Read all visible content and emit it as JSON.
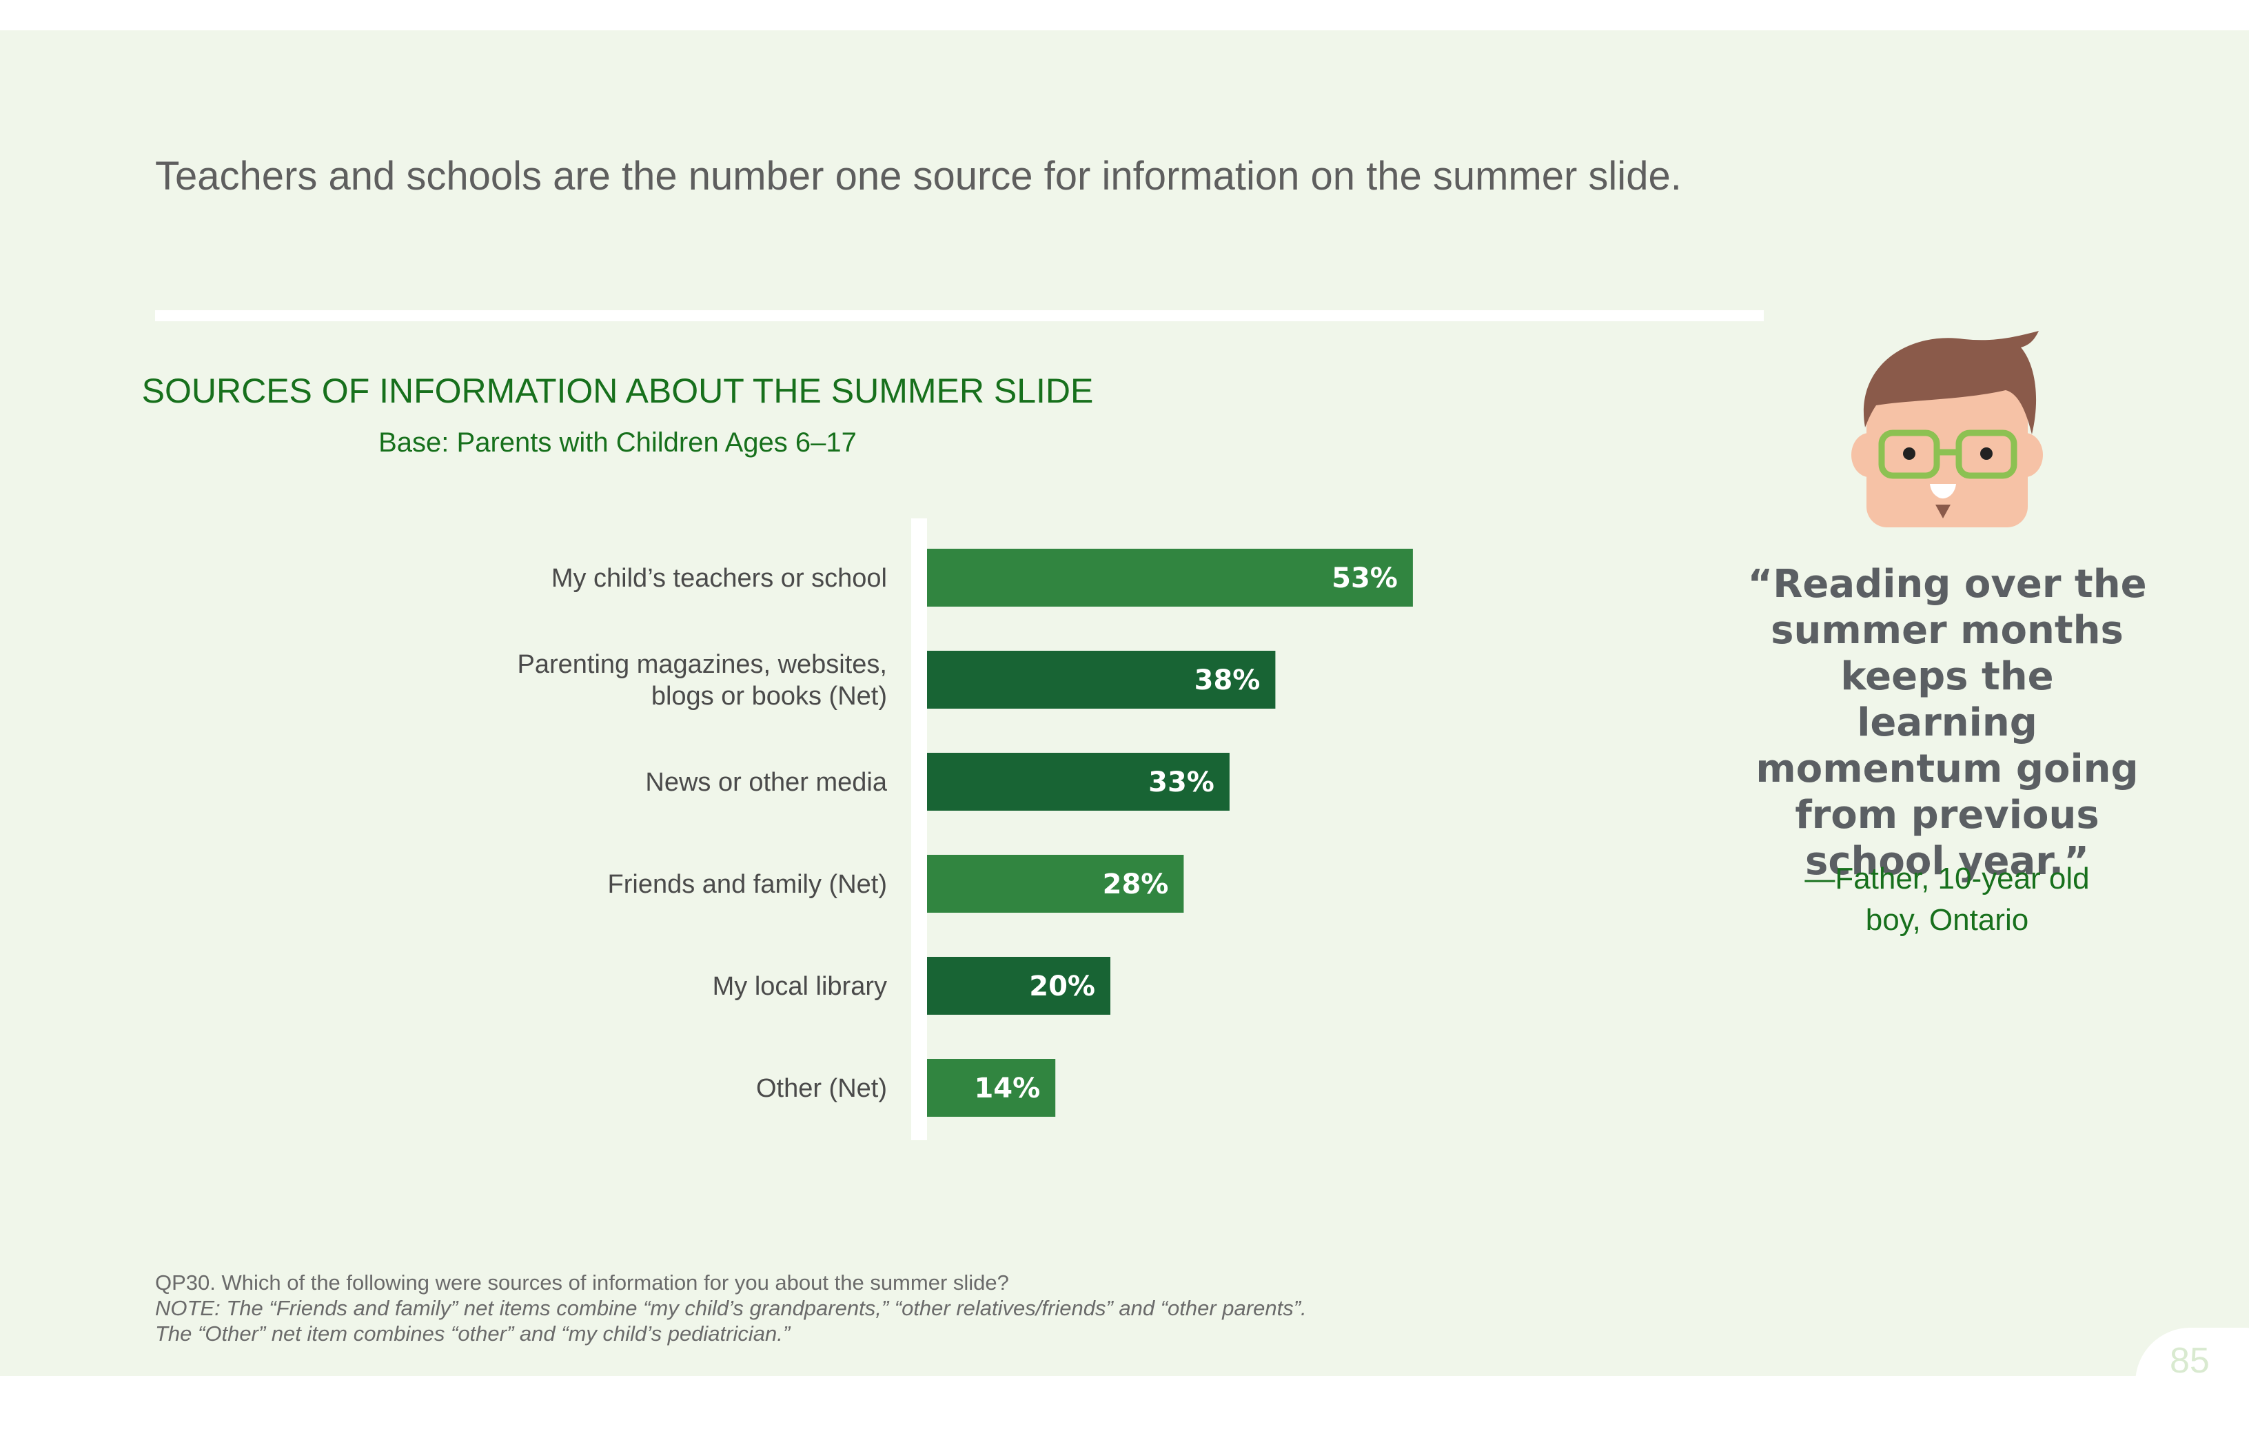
{
  "slide": {
    "headline": "Teachers and schools are the number one source for information on the summer slide.",
    "quote": "“Reading over the summer months keeps the learning momentum going from previous school year.”",
    "attribution_line1": "—Father, 10-year old",
    "attribution_line2": "boy, Ontario",
    "footnote_question": "QP30. Which of the following were sources of information for you about the summer slide?",
    "footnote_note1": "NOTE: The “Friends and family” net items combine “my child’s grandparents,” “other relatives/friends” and “other parents”.",
    "footnote_note2": "The “Other” net item combines “other” and “my child’s pediatrician.”",
    "page_number": "85",
    "avatar_icon": "boy-with-glasses-icon"
  },
  "chart_data": {
    "type": "bar",
    "orientation": "horizontal",
    "title": "SOURCES OF INFORMATION ABOUT THE SUMMER SLIDE",
    "subtitle": "Base: Parents with Children Ages 6–17",
    "categories": [
      [
        "My child’s teachers or school"
      ],
      [
        "Parenting magazines, websites,",
        "blogs or books (Net)"
      ],
      [
        "News or other media"
      ],
      [
        "Friends and family (Net)"
      ],
      [
        "My local library"
      ],
      [
        "Other (Net)"
      ]
    ],
    "values": [
      53,
      38,
      33,
      28,
      20,
      14
    ],
    "value_labels": [
      "53%",
      "38%",
      "33%",
      "28%",
      "20%",
      "14%"
    ],
    "bar_colors": [
      "#318540",
      "#186434",
      "#186434",
      "#318540",
      "#186434",
      "#318540"
    ],
    "xlim": [
      0,
      100
    ],
    "grid": false
  },
  "colors": {
    "background": "#f0f6ea",
    "title_green": "#17701c",
    "bar_light": "#318540",
    "bar_dark": "#186434"
  }
}
